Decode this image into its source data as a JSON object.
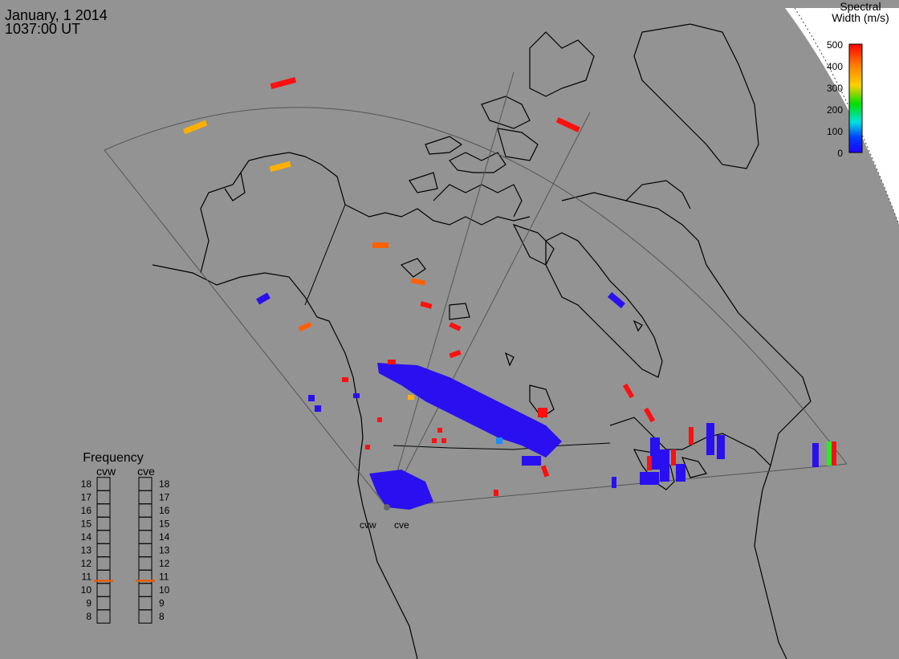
{
  "header": {
    "date": "January, 1 2014",
    "time": "1037:00 UT"
  },
  "colorbar": {
    "title_line1": "Spectral",
    "title_line2": "Width (m/s)",
    "ticks": [
      "500",
      "400",
      "300",
      "200",
      "100",
      "0"
    ],
    "colors": [
      "#ff0000",
      "#ff8000",
      "#ffd000",
      "#00e000",
      "#00e0e0",
      "#0040ff",
      "#2000ff"
    ]
  },
  "frequency_panel": {
    "title": "Frequency",
    "radars": [
      "cvw",
      "cve"
    ],
    "levels": [
      "18",
      "17",
      "16",
      "15",
      "14",
      "13",
      "12",
      "11",
      "10",
      "9",
      "8"
    ],
    "marker_level_mhz": 10.7,
    "marker_color": "#e85a00"
  },
  "radar_sites": [
    {
      "name": "cvw"
    },
    {
      "name": "cve"
    }
  ]
}
